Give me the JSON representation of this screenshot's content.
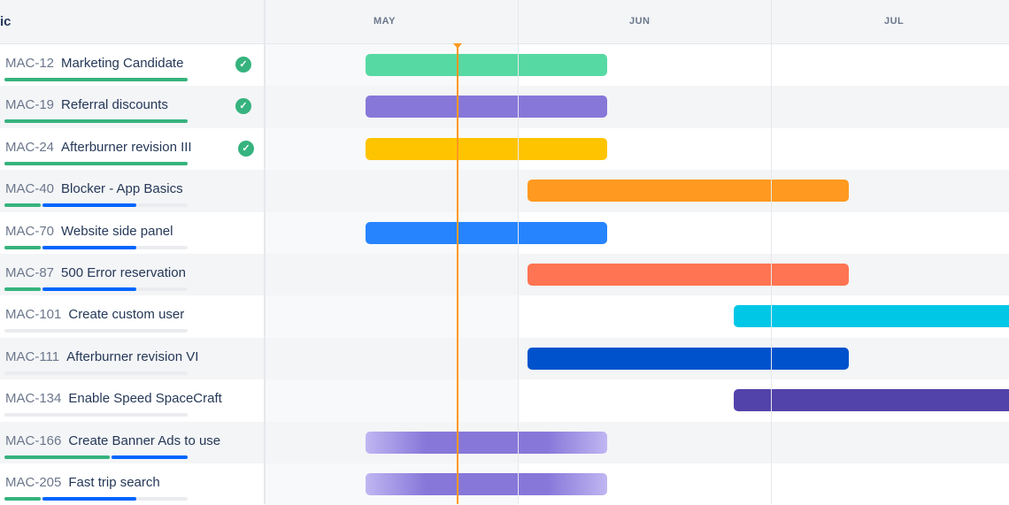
{
  "header": {
    "epic_label": "ic",
    "months": [
      "MAY",
      "JUN",
      "JUL"
    ]
  },
  "colors": {
    "done": "#36b37e",
    "in_progress": "#0065ff",
    "todo": "#ebecf0",
    "today": "#ff991f"
  },
  "rows": [
    {
      "key": "MAC-12",
      "summary": "Marketing Candidate",
      "done": true,
      "progress": {
        "done": 1,
        "in_progress": 0
      },
      "bar_color": "#57d9a3"
    },
    {
      "key": "MAC-19",
      "summary": "Referral discounts",
      "done": true,
      "progress": {
        "done": 1,
        "in_progress": 0
      },
      "bar_color": "#8777d9"
    },
    {
      "key": "MAC-24",
      "summary": "Afterburner revision III",
      "done": true,
      "progress": {
        "done": 1,
        "in_progress": 0
      },
      "bar_color": "#ffc400"
    },
    {
      "key": "MAC-40",
      "summary": "Blocker - App Basics",
      "done": false,
      "progress": {
        "done": 0.2,
        "in_progress": 0.51
      },
      "bar_color": "#ff991f"
    },
    {
      "key": "MAC-70",
      "summary": "Website side panel",
      "done": false,
      "progress": {
        "done": 0.2,
        "in_progress": 0.51
      },
      "bar_color": "#2684ff"
    },
    {
      "key": "MAC-87",
      "summary": "500 Error reservation",
      "done": false,
      "progress": {
        "done": 0.2,
        "in_progress": 0.51
      },
      "bar_color": "#ff7452"
    },
    {
      "key": "MAC-101",
      "summary": "Create custom user",
      "done": false,
      "progress": {
        "done": 0,
        "in_progress": 0
      },
      "bar_color": "#00c7e6"
    },
    {
      "key": "MAC-111",
      "summary": "Afterburner revision VI",
      "done": false,
      "progress": {
        "done": 0,
        "in_progress": 0
      },
      "bar_color": "#0052cc"
    },
    {
      "key": "MAC-134",
      "summary": "Enable Speed SpaceCraft",
      "done": false,
      "progress": {
        "done": 0,
        "in_progress": 0
      },
      "bar_color": "#5243aa"
    },
    {
      "key": "MAC-166",
      "summary": "Create Banner Ads to use",
      "done": false,
      "progress": {
        "done": 0.58,
        "in_progress": 0.42
      },
      "bar_color": "#8777d9",
      "bar_faded": true
    },
    {
      "key": "MAC-205",
      "summary": "Fast trip search",
      "done": false,
      "progress": {
        "done": 0.2,
        "in_progress": 0.51
      },
      "bar_color": "#8777d9",
      "bar_faded": true
    }
  ]
}
